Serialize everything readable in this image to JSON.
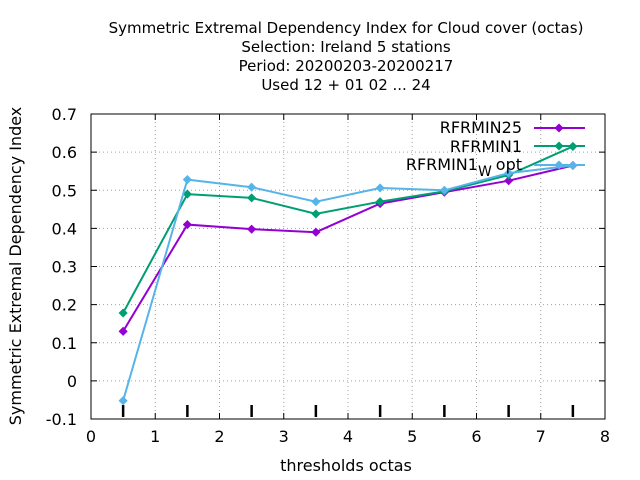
{
  "chart_data": {
    "type": "line",
    "title_lines": [
      "Symmetric Extremal Dependency Index  for Cloud cover (octas)",
      "Selection: Ireland      5 stations",
      "Period: 20200203-20200217",
      "Used  12 + 01 02 ... 24"
    ],
    "xlabel": "thresholds octas",
    "ylabel": "Symmetric Extremal Dependency Index",
    "xlim": [
      0,
      8
    ],
    "ylim": [
      -0.1,
      0.7
    ],
    "xticks": [
      0,
      1,
      2,
      3,
      4,
      5,
      6,
      7,
      8
    ],
    "yticks": [
      -0.1,
      0,
      0.1,
      0.2,
      0.3,
      0.4,
      0.5,
      0.6,
      0.7
    ],
    "xtick_labels": [
      "0",
      "1",
      "2",
      "3",
      "4",
      "5",
      "6",
      "7",
      "8"
    ],
    "ytick_labels": [
      "-0.1",
      "0",
      "0.1",
      "0.2",
      "0.3",
      "0.4",
      "0.5",
      "0.6",
      "0.7"
    ],
    "grid": true,
    "legend_position": "top-right",
    "threshold_marks": [
      0.5,
      1.5,
      2.5,
      3.5,
      4.5,
      5.5,
      6.5,
      7.5
    ],
    "x": [
      0.5,
      1.5,
      2.5,
      3.5,
      4.5,
      5.5,
      6.5,
      7.5
    ],
    "series": [
      {
        "name": "RFRMIN25",
        "color": "#9400d3",
        "values": [
          0.13,
          0.41,
          0.398,
          0.39,
          0.465,
          0.495,
          0.525,
          0.565
        ]
      },
      {
        "name": "RFRMIN1",
        "color": "#009e73",
        "values": [
          0.178,
          0.49,
          0.48,
          0.438,
          0.47,
          0.497,
          0.54,
          0.615
        ]
      },
      {
        "name_main": "RFRMIN1",
        "name_sub": "W",
        "name_tail": "opt",
        "color": "#56b4e9",
        "values": [
          -0.052,
          0.528,
          0.508,
          0.47,
          0.506,
          0.5,
          0.545,
          0.565
        ]
      }
    ]
  }
}
